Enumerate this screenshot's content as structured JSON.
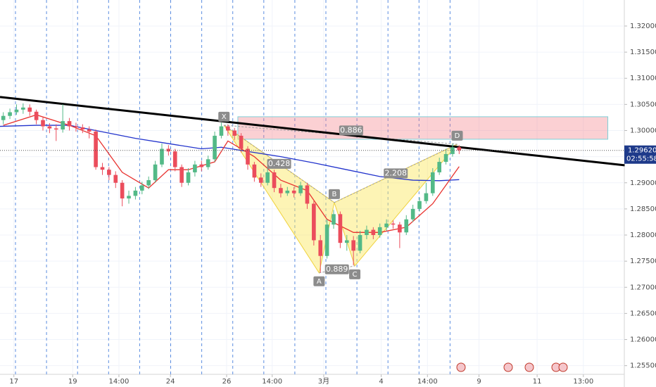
{
  "chart_data": {
    "type": "candlestick",
    "up_color": "#53b987",
    "down_color": "#eb4d5c",
    "open": [
      1.302,
      1.3028,
      1.3035,
      1.304,
      1.3044,
      1.3036,
      1.302,
      1.3008,
      1.3004,
      1.3002,
      1.3018,
      1.3008,
      1.3006,
      1.3002,
      1.2998,
      1.293,
      1.2925,
      1.2915,
      1.29,
      1.287,
      1.2875,
      1.2885,
      1.2895,
      1.2905,
      1.2935,
      1.2965,
      1.296,
      1.293,
      1.29,
      1.292,
      1.2935,
      1.293,
      1.2945,
      1.299,
      1.3008,
      1.3,
      1.299,
      1.2965,
      1.2935,
      1.291,
      1.29,
      1.292,
      1.289,
      1.288,
      1.2885,
      1.288,
      1.2895,
      1.286,
      1.279,
      1.276,
      1.282,
      1.284,
      1.2785,
      1.279,
      1.277,
      1.28,
      1.281,
      1.28,
      1.2815,
      1.2822,
      1.282,
      1.2805,
      1.283,
      1.285,
      1.2865,
      1.288,
      1.292,
      1.294,
      1.2955,
      1.2968
    ],
    "high": [
      1.3035,
      1.3042,
      1.305,
      1.3052,
      1.305,
      1.304,
      1.3025,
      1.3014,
      1.3012,
      1.305,
      1.3024,
      1.3015,
      1.3012,
      1.3008,
      1.3002,
      1.2938,
      1.293,
      1.2922,
      1.2905,
      1.2885,
      1.2892,
      1.2902,
      1.2912,
      1.2942,
      1.2975,
      1.2972,
      1.2965,
      1.2935,
      1.2928,
      1.2942,
      1.2942,
      1.2952,
      1.2998,
      1.3015,
      1.3012,
      1.3005,
      1.2995,
      1.297,
      1.294,
      1.2918,
      1.2928,
      1.2925,
      1.2898,
      1.2892,
      1.2892,
      1.2902,
      1.29,
      1.2865,
      1.28,
      1.283,
      1.2848,
      1.2845,
      1.28,
      1.2798,
      1.2808,
      1.2818,
      1.2815,
      1.2822,
      1.283,
      1.2828,
      1.2825,
      1.2838,
      1.2858,
      1.2872,
      1.29,
      1.2928,
      1.2948,
      1.2965,
      1.2975,
      1.2972
    ],
    "low": [
      1.3012,
      1.3022,
      1.303,
      1.3032,
      1.3028,
      1.3012,
      1.3,
      1.2995,
      1.298,
      1.2996,
      1.3,
      1.2998,
      1.2995,
      1.2985,
      1.2925,
      1.2915,
      1.2905,
      1.289,
      1.2855,
      1.286,
      1.2868,
      1.2878,
      1.2888,
      1.29,
      1.293,
      1.2952,
      1.2922,
      1.2892,
      1.2895,
      1.2912,
      1.2922,
      1.2925,
      1.294,
      1.2985,
      1.299,
      1.2982,
      1.2958,
      1.2925,
      1.2902,
      1.2892,
      1.2895,
      1.2882,
      1.2872,
      1.2875,
      1.2872,
      1.2875,
      1.285,
      1.278,
      1.2728,
      1.2755,
      1.2812,
      1.2775,
      1.277,
      1.2742,
      1.2765,
      1.2792,
      1.2792,
      1.2795,
      1.2808,
      1.2812,
      1.2775,
      1.28,
      1.2825,
      1.2845,
      1.286,
      1.2875,
      1.2915,
      1.2935,
      1.295,
      1.2955
    ],
    "close": [
      1.3028,
      1.3035,
      1.304,
      1.3044,
      1.3036,
      1.302,
      1.3008,
      1.3004,
      1.3002,
      1.3018,
      1.3008,
      1.3006,
      1.3002,
      1.2998,
      1.293,
      1.2925,
      1.2915,
      1.29,
      1.287,
      1.2875,
      1.2885,
      1.2895,
      1.2905,
      1.2935,
      1.2965,
      1.296,
      1.293,
      1.29,
      1.292,
      1.2935,
      1.293,
      1.2945,
      1.299,
      1.3008,
      1.3,
      1.299,
      1.2965,
      1.2935,
      1.291,
      1.29,
      1.292,
      1.289,
      1.288,
      1.2885,
      1.288,
      1.2895,
      1.286,
      1.279,
      1.276,
      1.282,
      1.284,
      1.2785,
      1.279,
      1.277,
      1.28,
      1.281,
      1.28,
      1.2815,
      1.2822,
      1.282,
      1.2805,
      1.283,
      1.285,
      1.2865,
      1.288,
      1.292,
      1.294,
      1.2955,
      1.2968,
      1.2962
    ],
    "ma": [
      {
        "color": "#2233cc",
        "x": [
          -0.5,
          5,
          10,
          14,
          20,
          25,
          30,
          33,
          37,
          42,
          47,
          52,
          57,
          62,
          66,
          69
        ],
        "values": [
          1.3008,
          1.301,
          1.301,
          1.3,
          1.2985,
          1.2975,
          1.2965,
          1.2968,
          1.296,
          1.295,
          1.2938,
          1.2925,
          1.2912,
          1.2905,
          1.2904,
          1.2906
        ]
      },
      {
        "color": "#e8322f",
        "x": [
          0,
          5,
          10,
          14,
          18,
          22,
          25,
          28,
          32,
          34,
          38,
          42,
          46,
          49,
          53,
          57,
          61,
          65,
          69
        ],
        "values": [
          1.301,
          1.303,
          1.301,
          1.299,
          1.292,
          1.289,
          1.2925,
          1.2925,
          1.294,
          1.298,
          1.295,
          1.2905,
          1.2885,
          1.283,
          1.2805,
          1.2805,
          1.2815,
          1.286,
          1.2931
        ]
      }
    ],
    "trendline": {
      "x": [
        -0.5,
        94.05
      ],
      "y": [
        1.30641,
        1.29335
      ]
    },
    "zone": {
      "x": [
        35.5,
        91.5
      ],
      "y": [
        1.29833,
        1.30264
      ]
    },
    "pattern": {
      "points": [
        {
          "label": "X",
          "x": 33.4,
          "y": 1.30102
        },
        {
          "label": "A",
          "x": 47.8,
          "y": 1.27276
        },
        {
          "label": "B",
          "x": 50.1,
          "y": 1.28622
        },
        {
          "label": "C",
          "x": 53.2,
          "y": 1.2741
        },
        {
          "label": "D",
          "x": 68.7,
          "y": 1.29739
        }
      ],
      "ratios": {
        "XB": 0.428,
        "AC": 0.889,
        "BD": 2.208,
        "XD": 0.886
      }
    },
    "last_price": {
      "value": 1.2962,
      "label": "1.29620"
    },
    "countdown": "02:55:58",
    "xlim": [
      -0.5,
      94
    ],
    "ylim": [
      1.25334,
      1.32498
    ],
    "grid": true,
    "xticks": [
      {
        "value": 1.6,
        "label": "17"
      },
      {
        "value": 10.5,
        "label": "19"
      },
      {
        "value": 17.5,
        "label": "14:00"
      },
      {
        "value": 25.3,
        "label": "24"
      },
      {
        "value": 33.8,
        "label": "26"
      },
      {
        "value": 40.7,
        "label": "14:00"
      },
      {
        "value": 48.5,
        "label": "3月"
      },
      {
        "value": 57.2,
        "label": "4"
      },
      {
        "value": 64.2,
        "label": "14:00"
      },
      {
        "value": 72.0,
        "label": "9"
      },
      {
        "value": 80.8,
        "label": "11"
      },
      {
        "value": 87.8,
        "label": "13:00"
      }
    ],
    "yticks": [
      {
        "value": 1.32,
        "label": "1.32000"
      },
      {
        "value": 1.315,
        "label": "1.31500"
      },
      {
        "value": 1.31,
        "label": "1.31000"
      },
      {
        "value": 1.305,
        "label": "1.30500"
      },
      {
        "value": 1.3,
        "label": "1.30000"
      },
      {
        "value": 1.295,
        "label": "1.29500"
      },
      {
        "value": 1.29,
        "label": "1.29000"
      },
      {
        "value": 1.285,
        "label": "1.28500"
      },
      {
        "value": 1.28,
        "label": "1.28000"
      },
      {
        "value": 1.275,
        "label": "1.27500"
      },
      {
        "value": 1.27,
        "label": "1.27000"
      },
      {
        "value": 1.265,
        "label": "1.26500"
      },
      {
        "value": 1.26,
        "label": "1.26000"
      },
      {
        "value": 1.255,
        "label": "1.25500"
      }
    ]
  }
}
